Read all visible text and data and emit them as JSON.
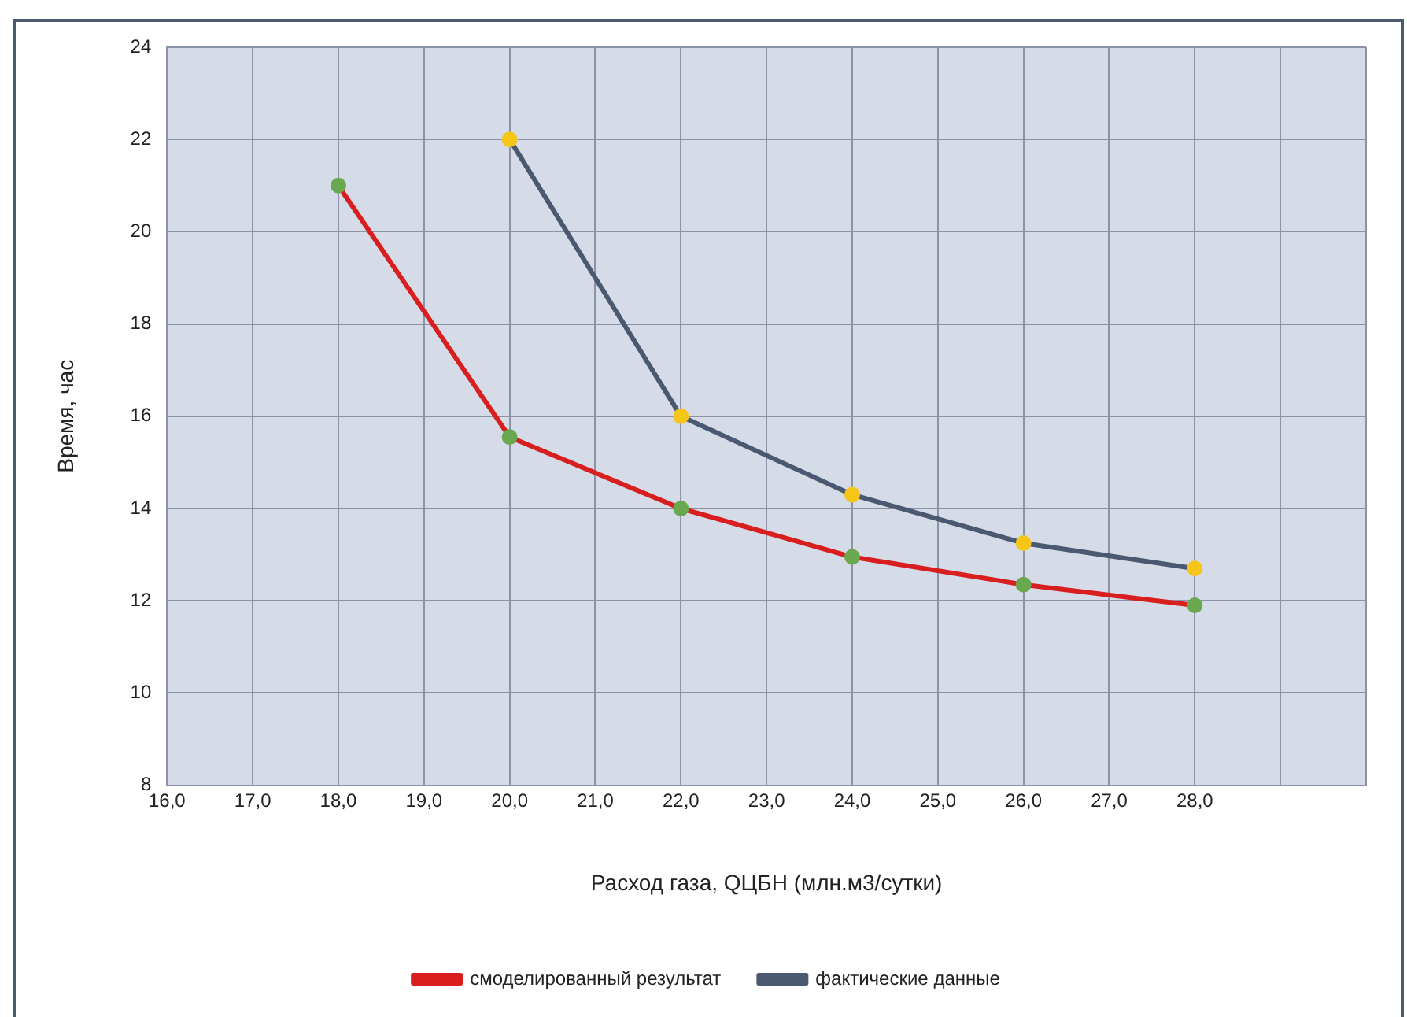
{
  "chart_data": {
    "type": "line",
    "xlabel": "Расход газа, QЦБН (млн.м3/сутки)",
    "ylabel": "Время, час",
    "xlim": [
      16,
      30
    ],
    "xticks": [
      {
        "value": 16,
        "label": "16,0"
      },
      {
        "value": 17,
        "label": "17,0"
      },
      {
        "value": 18,
        "label": "18,0"
      },
      {
        "value": 19,
        "label": "19,0"
      },
      {
        "value": 20,
        "label": "20,0"
      },
      {
        "value": 21,
        "label": "21,0"
      },
      {
        "value": 22,
        "label": "22,0"
      },
      {
        "value": 23,
        "label": "23,0"
      },
      {
        "value": 24,
        "label": "24,0"
      },
      {
        "value": 25,
        "label": "25,0"
      },
      {
        "value": 26,
        "label": "26,0"
      },
      {
        "value": 27,
        "label": "27,0"
      },
      {
        "value": 28,
        "label": "28,0"
      },
      {
        "value": 29,
        "label": null
      },
      {
        "value": 30,
        "label": null
      }
    ],
    "ylim": [
      8,
      24
    ],
    "yticks": [
      8,
      10,
      12,
      14,
      16,
      18,
      20,
      22,
      24
    ],
    "grid": true,
    "legend": "bottom",
    "marker": "circle",
    "line_style": "solid",
    "series": [
      {
        "name": "смоделированный результат",
        "color": "#d81e1e",
        "colors": [
          "#6aa84f",
          "#6aa84f",
          "#6aa84f",
          "#6aa84f",
          "#6aa84f",
          "#6aa84f"
        ],
        "x": [
          18,
          20,
          22,
          24,
          26,
          28
        ],
        "values": [
          21,
          15.55,
          14,
          12.95,
          12.35,
          11.9
        ]
      },
      {
        "name": "фактические данные",
        "color": "#4a5870",
        "colors": [
          "#f5c518",
          "#f5c518",
          "#f5c518",
          "#f5c518",
          "#f5c518"
        ],
        "x": [
          20,
          22,
          24,
          26,
          28
        ],
        "values": [
          22,
          16,
          14.3,
          13.25,
          12.7
        ]
      }
    ]
  }
}
